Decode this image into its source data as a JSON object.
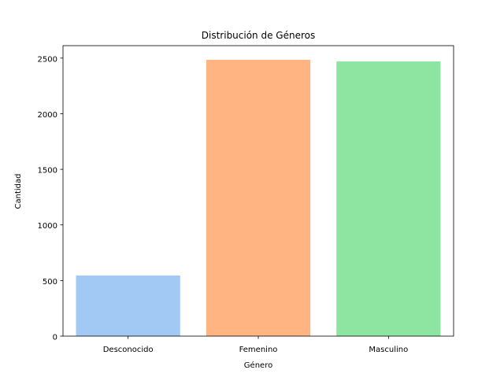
{
  "chart_data": {
    "type": "bar",
    "title": "Distribución de Géneros",
    "xlabel": "Género",
    "ylabel": "Cantidad",
    "categories": [
      "Desconocido",
      "Femenino",
      "Masculino"
    ],
    "values": [
      545,
      2485,
      2470
    ],
    "colors": [
      "#a1c9f4",
      "#ffb482",
      "#8de5a1"
    ],
    "ylim": [
      0,
      2612
    ],
    "yticks": [
      0,
      500,
      1000,
      1500,
      2000,
      2500
    ],
    "grid": false,
    "legend": "none"
  }
}
